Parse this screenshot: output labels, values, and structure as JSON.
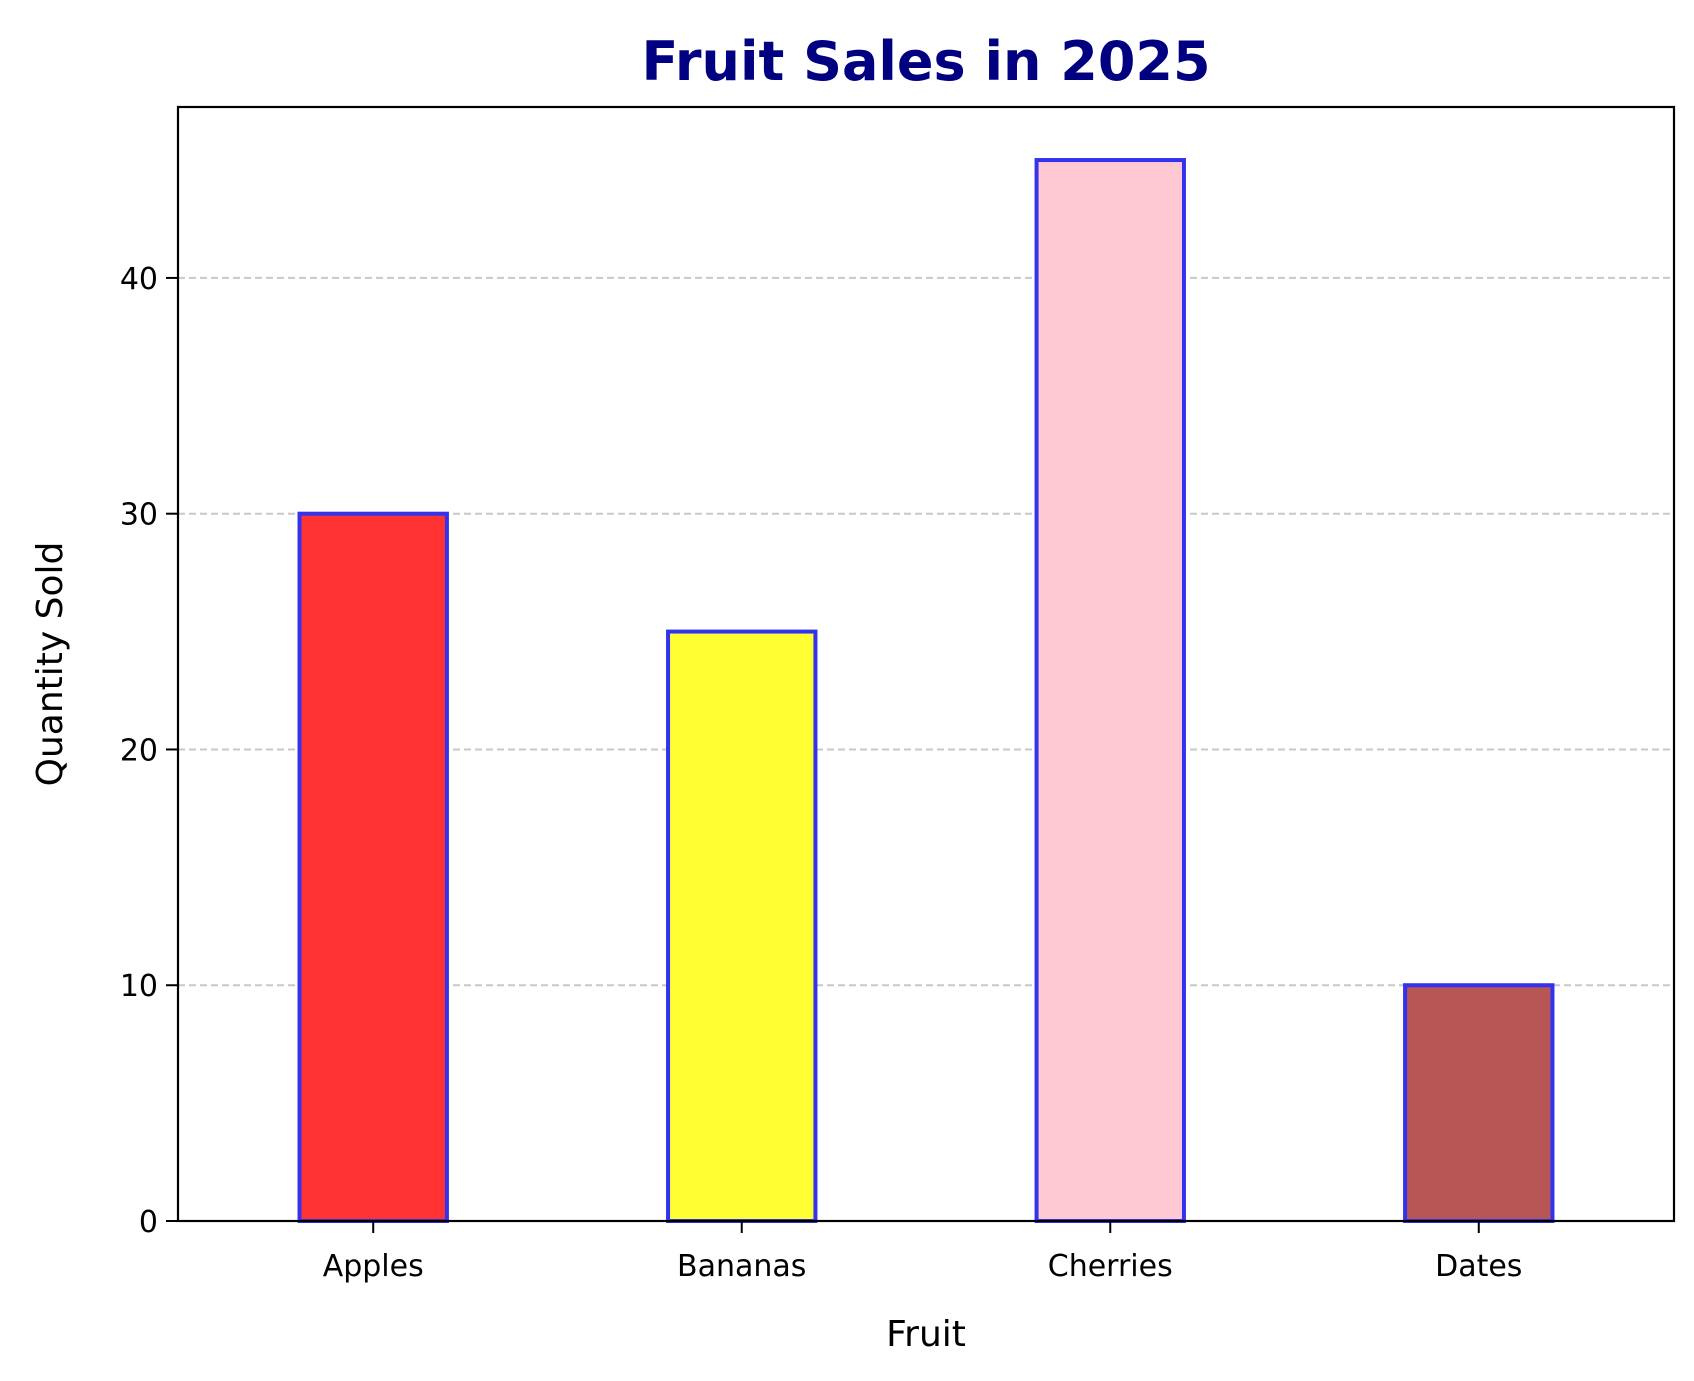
{
  "chart_data": {
    "type": "bar",
    "title": "Fruit Sales in 2025",
    "title_color": "#000080",
    "xlabel": "Fruit",
    "ylabel": "Quantity Sold",
    "categories": [
      "Apples",
      "Bananas",
      "Cherries",
      "Dates"
    ],
    "values": [
      30,
      25,
      45,
      10
    ],
    "bar_colors": [
      "#ff3333",
      "#ffff33",
      "#ffc9d4",
      "#b85555"
    ],
    "bar_edge_color": "#3333ee",
    "ylim": [
      0,
      47.25
    ],
    "yticks": [
      0,
      10,
      20,
      30,
      40
    ],
    "ytick_labels": [
      "0",
      "10",
      "20",
      "30",
      "40"
    ],
    "grid": {
      "axis": "y",
      "style": "dashed",
      "color": "#c8c8c8"
    },
    "legend": "none"
  }
}
